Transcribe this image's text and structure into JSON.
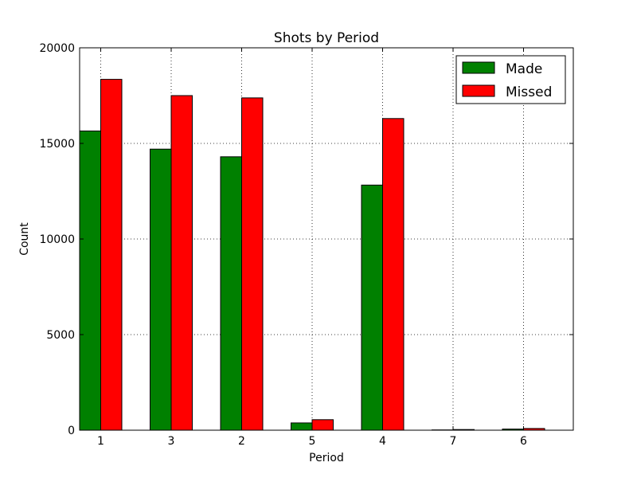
{
  "chart_data": {
    "type": "bar",
    "title": "Shots by Period",
    "xlabel": "Period",
    "ylabel": "Count",
    "categories": [
      "1",
      "3",
      "2",
      "5",
      "4",
      "7",
      "6"
    ],
    "series": [
      {
        "name": "Made",
        "color": "#008000",
        "values": [
          15650,
          14700,
          14300,
          380,
          12820,
          15,
          60
        ]
      },
      {
        "name": "Missed",
        "color": "#ff0000",
        "values": [
          18350,
          17500,
          17380,
          550,
          16300,
          35,
          90
        ]
      }
    ],
    "ylim": [
      0,
      20000
    ],
    "yticks": [
      0,
      5000,
      10000,
      15000,
      20000
    ],
    "grid": true,
    "legend": "top-right"
  }
}
